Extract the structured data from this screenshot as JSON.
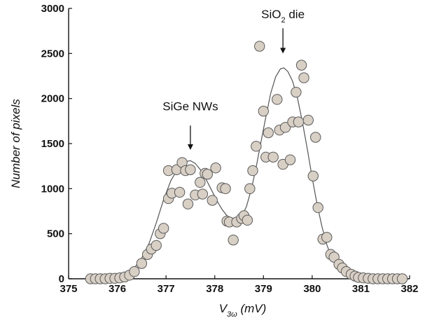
{
  "chart_data": {
    "type": "scatter",
    "xlabel": {
      "main": "V",
      "sub": "3ω",
      "rest": " (mV)"
    },
    "ylabel": "Number of pixels",
    "xlim": [
      375,
      382
    ],
    "ylim": [
      0,
      3000
    ],
    "xticks": [
      375,
      376,
      377,
      378,
      379,
      380,
      381,
      382
    ],
    "yticks": [
      0,
      500,
      1000,
      1500,
      2000,
      2500,
      3000
    ],
    "grid": false,
    "series": [
      {
        "kind": "points",
        "marker_fill": "#d8cfc5",
        "marker_stroke": "#5a5a5a",
        "points": [
          [
            375.45,
            0
          ],
          [
            375.55,
            0
          ],
          [
            375.65,
            0
          ],
          [
            375.75,
            0
          ],
          [
            375.85,
            5
          ],
          [
            375.95,
            5
          ],
          [
            376.05,
            10
          ],
          [
            376.15,
            20
          ],
          [
            376.25,
            40
          ],
          [
            376.35,
            80
          ],
          [
            376.5,
            170
          ],
          [
            376.62,
            270
          ],
          [
            376.7,
            330
          ],
          [
            376.8,
            370
          ],
          [
            376.88,
            500
          ],
          [
            376.95,
            560
          ],
          [
            377.05,
            890
          ],
          [
            377.05,
            1200
          ],
          [
            377.12,
            950
          ],
          [
            377.22,
            1210
          ],
          [
            377.28,
            960
          ],
          [
            377.33,
            1290
          ],
          [
            377.4,
            1200
          ],
          [
            377.45,
            830
          ],
          [
            377.5,
            1210
          ],
          [
            377.6,
            930
          ],
          [
            377.7,
            1070
          ],
          [
            377.75,
            940
          ],
          [
            377.8,
            1170
          ],
          [
            377.85,
            1160
          ],
          [
            377.95,
            870
          ],
          [
            378.02,
            1230
          ],
          [
            378.15,
            1010
          ],
          [
            378.22,
            1000
          ],
          [
            378.25,
            640
          ],
          [
            378.3,
            630
          ],
          [
            378.38,
            430
          ],
          [
            378.45,
            630
          ],
          [
            378.55,
            670
          ],
          [
            378.6,
            700
          ],
          [
            378.67,
            650
          ],
          [
            378.72,
            1000
          ],
          [
            378.78,
            1200
          ],
          [
            378.85,
            1470
          ],
          [
            378.92,
            2580
          ],
          [
            379.0,
            1860
          ],
          [
            379.05,
            1350
          ],
          [
            379.1,
            1620
          ],
          [
            379.2,
            1350
          ],
          [
            379.28,
            1990
          ],
          [
            379.33,
            1650
          ],
          [
            379.4,
            1270
          ],
          [
            379.45,
            1680
          ],
          [
            379.55,
            1320
          ],
          [
            379.6,
            1740
          ],
          [
            379.67,
            2070
          ],
          [
            379.72,
            1740
          ],
          [
            379.78,
            2370
          ],
          [
            379.83,
            2230
          ],
          [
            379.92,
            1760
          ],
          [
            380.02,
            1140
          ],
          [
            380.07,
            1570
          ],
          [
            380.12,
            790
          ],
          [
            380.22,
            440
          ],
          [
            380.3,
            460
          ],
          [
            380.38,
            270
          ],
          [
            380.45,
            240
          ],
          [
            380.55,
            160
          ],
          [
            380.62,
            120
          ],
          [
            380.7,
            80
          ],
          [
            380.8,
            50
          ],
          [
            380.88,
            30
          ],
          [
            380.95,
            15
          ],
          [
            381.05,
            10
          ],
          [
            381.15,
            5
          ],
          [
            381.25,
            0
          ],
          [
            381.35,
            0
          ],
          [
            381.45,
            0
          ],
          [
            381.55,
            0
          ],
          [
            381.65,
            0
          ],
          [
            381.75,
            0
          ],
          [
            381.85,
            0
          ]
        ]
      },
      {
        "kind": "line",
        "stroke": "#555555",
        "points": [
          [
            375.45,
            0
          ],
          [
            375.7,
            5
          ],
          [
            375.9,
            10
          ],
          [
            376.05,
            25
          ],
          [
            376.2,
            60
          ],
          [
            376.35,
            120
          ],
          [
            376.5,
            230
          ],
          [
            376.65,
            390
          ],
          [
            376.8,
            620
          ],
          [
            376.95,
            880
          ],
          [
            377.1,
            1090
          ],
          [
            377.25,
            1230
          ],
          [
            377.4,
            1300
          ],
          [
            377.5,
            1310
          ],
          [
            377.6,
            1280
          ],
          [
            377.75,
            1180
          ],
          [
            377.9,
            1020
          ],
          [
            378.05,
            860
          ],
          [
            378.15,
            770
          ],
          [
            378.25,
            700
          ],
          [
            378.35,
            660
          ],
          [
            378.45,
            650
          ],
          [
            378.55,
            690
          ],
          [
            378.65,
            800
          ],
          [
            378.75,
            990
          ],
          [
            378.85,
            1240
          ],
          [
            378.95,
            1520
          ],
          [
            379.05,
            1800
          ],
          [
            379.15,
            2060
          ],
          [
            379.25,
            2240
          ],
          [
            379.35,
            2330
          ],
          [
            379.42,
            2340
          ],
          [
            379.5,
            2300
          ],
          [
            379.6,
            2190
          ],
          [
            379.7,
            2000
          ],
          [
            379.8,
            1740
          ],
          [
            379.9,
            1440
          ],
          [
            380.0,
            1120
          ],
          [
            380.1,
            830
          ],
          [
            380.2,
            580
          ],
          [
            380.3,
            380
          ],
          [
            380.4,
            230
          ],
          [
            380.5,
            130
          ],
          [
            380.6,
            70
          ],
          [
            380.7,
            35
          ],
          [
            380.8,
            15
          ],
          [
            380.9,
            5
          ],
          [
            381.05,
            0
          ],
          [
            381.85,
            0
          ]
        ]
      }
    ],
    "annotations": [
      {
        "text": "SiGe NWs",
        "x": 377.5,
        "y": 1680,
        "arrow_to": [
          377.5,
          1430
        ]
      },
      {
        "text": "SiO2",
        "sub": "2",
        "x": 379.4,
        "y": 2870,
        "arrow_to": [
          379.4,
          2500
        ]
      }
    ],
    "labels": {
      "sige": "SiGe NWs",
      "sio2_main": "SiO",
      "sio2_sub": "2",
      "sio2_rest": " die"
    }
  }
}
